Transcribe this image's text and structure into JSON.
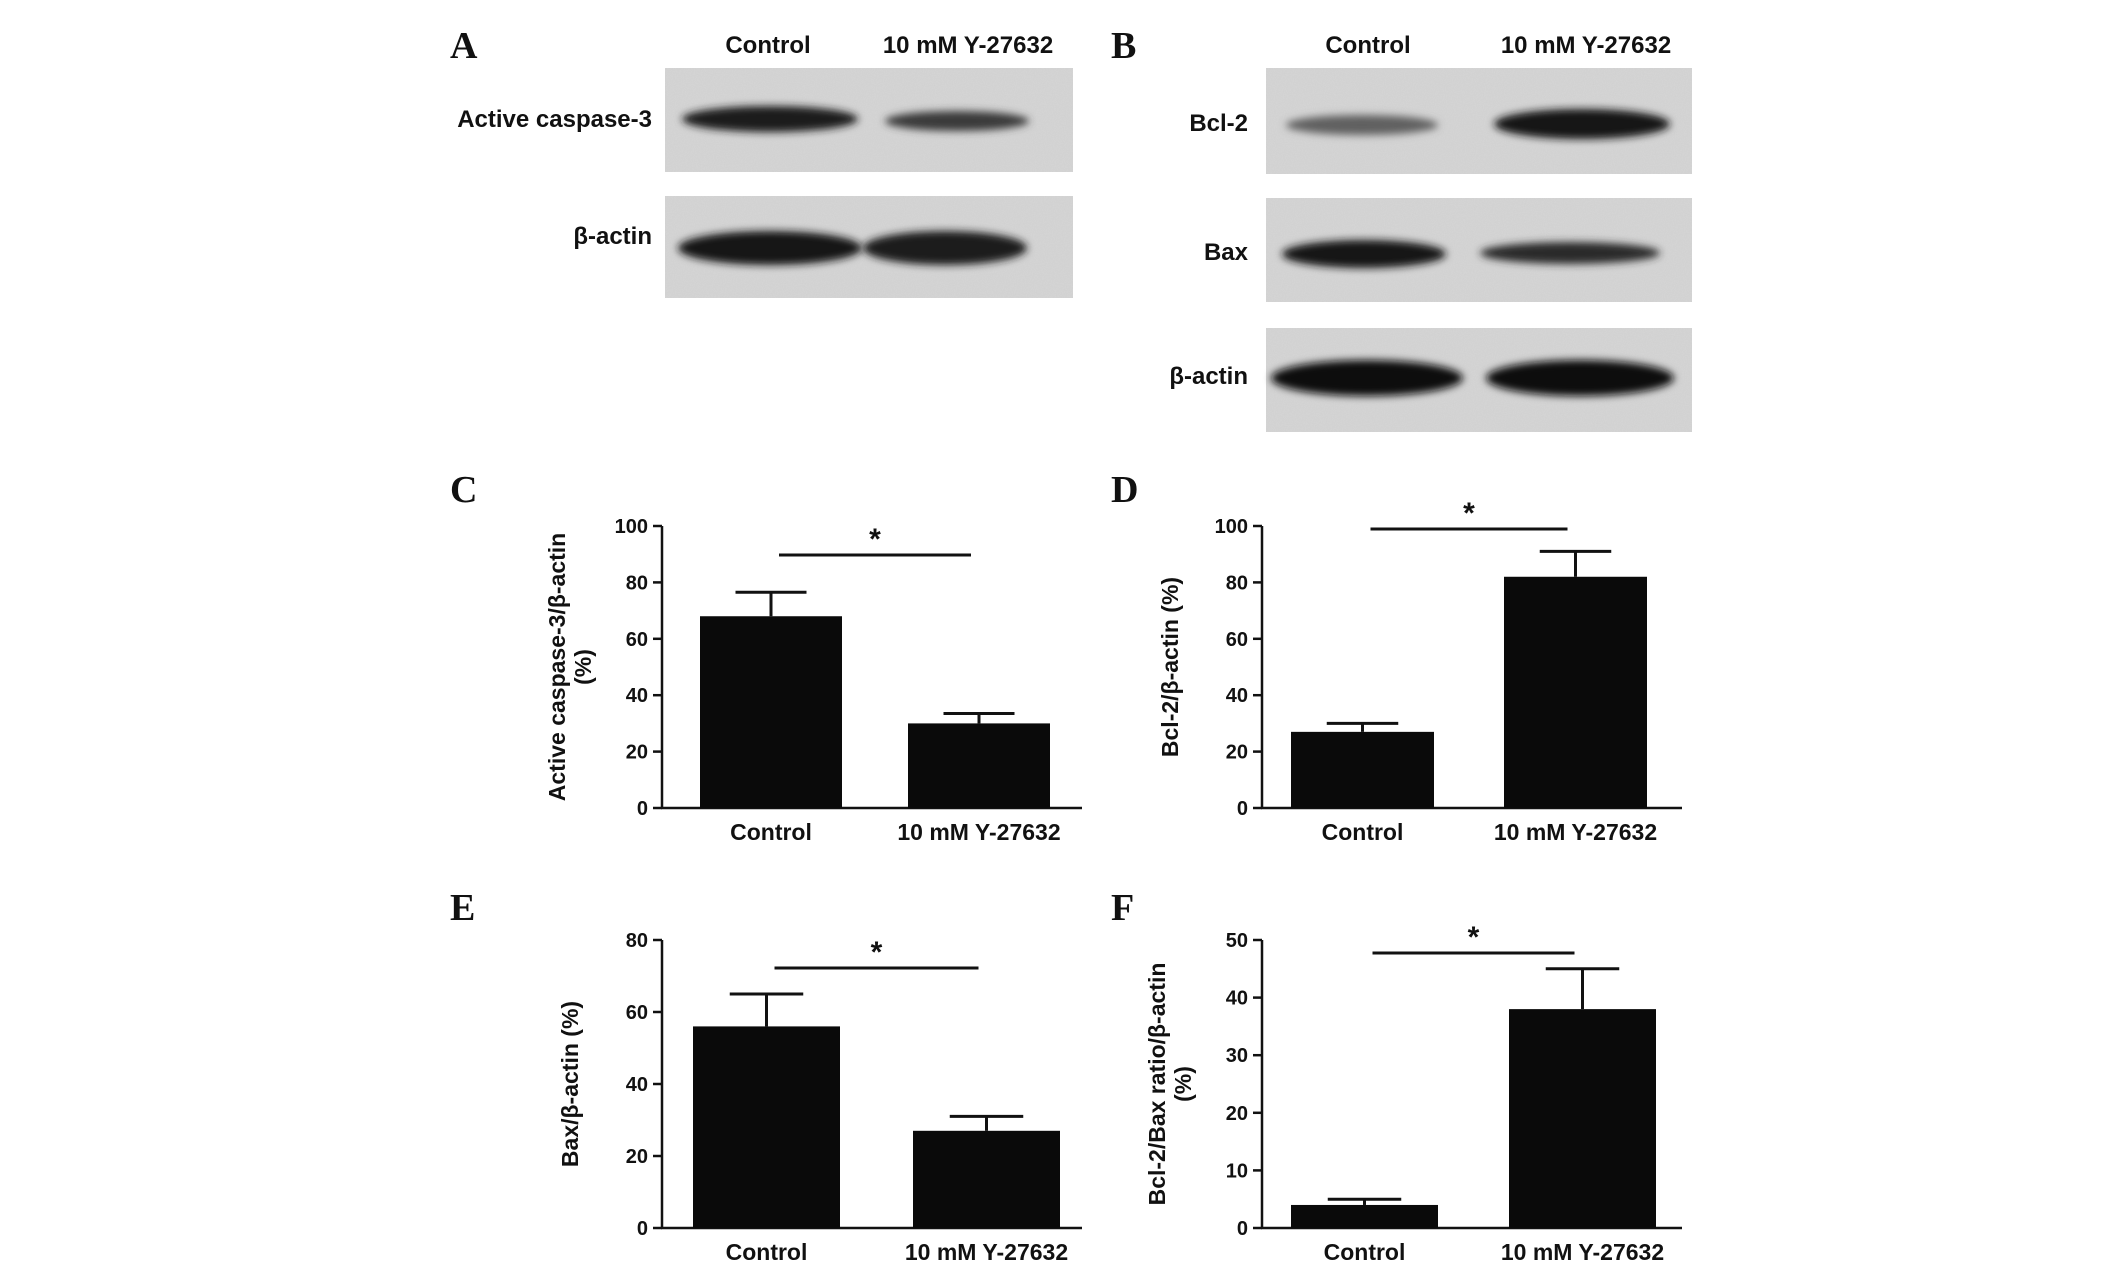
{
  "blots": {
    "A": {
      "letter": "A",
      "lanes": [
        "Control",
        "10 mM Y-27632"
      ],
      "rows": [
        {
          "label": "Active caspase-3",
          "intensity": [
            0.92,
            0.78
          ]
        },
        {
          "label": "β-actin",
          "intensity": [
            0.95,
            0.93
          ]
        }
      ]
    },
    "B": {
      "letter": "B",
      "lanes": [
        "Control",
        "10 mM Y-27632"
      ],
      "rows": [
        {
          "label": "Bcl-2",
          "intensity": [
            0.62,
            0.95
          ]
        },
        {
          "label": "Bax",
          "intensity": [
            0.95,
            0.85
          ]
        },
        {
          "label": "β-actin",
          "intensity": [
            0.97,
            0.97
          ]
        }
      ]
    }
  },
  "chart_data": [
    {
      "panel": "C",
      "type": "bar",
      "categories": [
        "Control",
        "10 mM Y-27632"
      ],
      "values": [
        68,
        30
      ],
      "errors": [
        8.5,
        3.5
      ],
      "ylabel": [
        "Active caspase-3/β-actin",
        "(%)"
      ],
      "ylim": [
        0,
        100
      ],
      "yticks": [
        0,
        20,
        40,
        60,
        80,
        100
      ],
      "significance": "*",
      "color": "#0a0a0a"
    },
    {
      "panel": "D",
      "type": "bar",
      "categories": [
        "Control",
        "10 mM Y-27632"
      ],
      "values": [
        27,
        82
      ],
      "errors": [
        3,
        9
      ],
      "ylabel": [
        "Bcl-2/β-actin (%)"
      ],
      "ylim": [
        0,
        100
      ],
      "yticks": [
        0,
        20,
        40,
        60,
        80,
        100
      ],
      "significance": "*",
      "color": "#0a0a0a"
    },
    {
      "panel": "E",
      "type": "bar",
      "categories": [
        "Control",
        "10 mM Y-27632"
      ],
      "values": [
        56,
        27
      ],
      "errors": [
        9,
        4
      ],
      "ylabel": [
        "Bax/β-actin (%)"
      ],
      "ylim": [
        0,
        80
      ],
      "yticks": [
        0,
        20,
        40,
        60,
        80
      ],
      "significance": "*",
      "color": "#0a0a0a"
    },
    {
      "panel": "F",
      "type": "bar",
      "categories": [
        "Control",
        "10 mM Y-27632"
      ],
      "values": [
        4,
        38
      ],
      "errors": [
        1,
        7
      ],
      "ylabel": [
        "Bcl-2/Bax ratio/β-actin",
        "(%)"
      ],
      "ylim": [
        0,
        50
      ],
      "yticks": [
        0,
        10,
        20,
        30,
        40,
        50
      ],
      "significance": "*",
      "color": "#0a0a0a"
    }
  ]
}
